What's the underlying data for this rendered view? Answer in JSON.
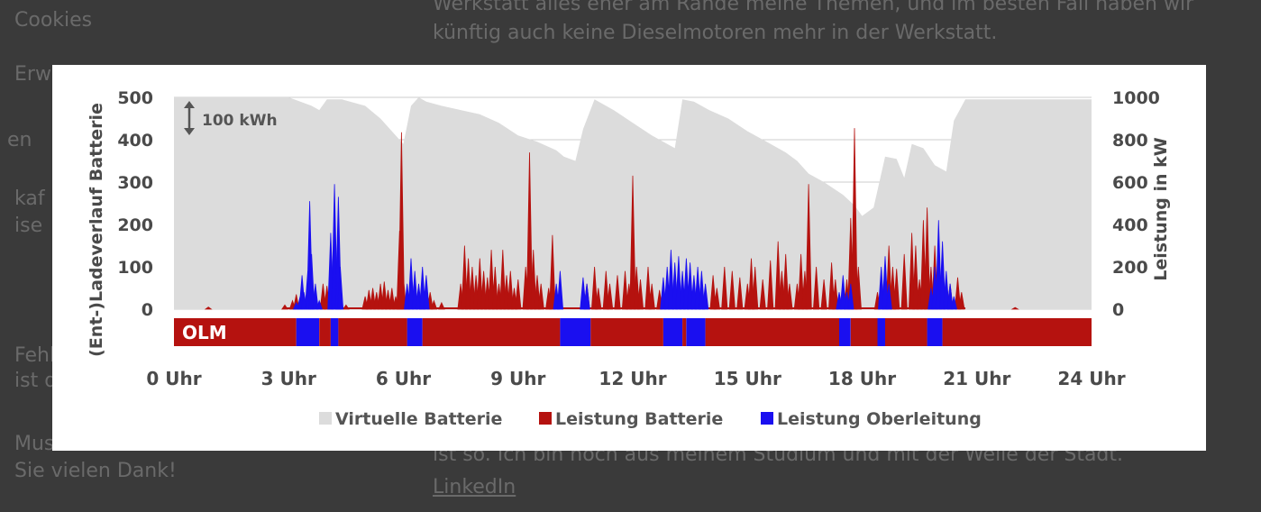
{
  "background": {
    "left_fragments": [
      "Cookies",
      "Erw",
      "en",
      "kaf",
      "ise",
      "Fehl",
      "ist d",
      "Mus",
      "Sie vielen Dank!"
    ],
    "right_fragments": [
      "Werkstatt alles eher am Rande meine Themen, und im besten Fall haben wir",
      "künftig auch keine Dieselmotoren mehr in der Werkstatt.",
      "ist so. Ich bin noch aus meinem Studium und mit der Welle der Stadt.",
      "LinkedIn"
    ]
  },
  "chart_data": {
    "type": "area",
    "left_axis": {
      "label": "(Ent-)Ladeverlauf Batterie",
      "ylim": [
        0,
        500
      ],
      "ticks": [
        "0",
        "100",
        "200",
        "300",
        "400",
        "500"
      ]
    },
    "right_axis": {
      "label": "Leistung in kW",
      "ylim": [
        0,
        1000
      ],
      "ticks": [
        "0",
        "200",
        "400",
        "600",
        "800",
        "1000"
      ]
    },
    "x_axis": {
      "xlim": [
        0,
        24
      ],
      "ticks": [
        "0 Uhr",
        "3 Uhr",
        "6 Uhr",
        "9 Uhr",
        "12 Uhr",
        "15 Uhr",
        "18 Uhr",
        "21 Uhr",
        "24 Uhr"
      ],
      "tick_hours": [
        0,
        3,
        6,
        9,
        12,
        15,
        18,
        21,
        24
      ]
    },
    "scale_annotation": "100 kWh",
    "band_label": "OLM",
    "legend": [
      {
        "name": "Virtuelle Batterie",
        "color": "#dcdcdc"
      },
      {
        "name": "Leistung Batterie",
        "color": "#b5120f"
      },
      {
        "name": "Leistung Oberleitung",
        "color": "#1a0ff0"
      }
    ],
    "colors": {
      "battery_area": "#dcdcdc",
      "battery_power": "#b5120f",
      "overhead_power": "#1a0ff0",
      "grid": "#cccccc"
    },
    "grid": true,
    "series_virtual_battery": {
      "name": "Virtuelle Batterie",
      "hours": [
        0,
        3.0,
        3.6,
        3.8,
        4.0,
        4.4,
        5.0,
        5.4,
        5.7,
        6.0,
        6.2,
        6.4,
        6.6,
        7.0,
        7.5,
        8.0,
        8.5,
        9.0,
        9.5,
        10.0,
        10.2,
        10.5,
        10.7,
        11.0,
        11.5,
        12.0,
        12.5,
        13.0,
        13.1,
        13.3,
        13.6,
        14.0,
        14.5,
        15.0,
        15.5,
        16.0,
        16.3,
        16.6,
        17.0,
        17.5,
        17.8,
        18.0,
        18.3,
        18.6,
        18.9,
        19.1,
        19.3,
        19.6,
        19.9,
        20.2,
        20.4,
        20.7,
        21.0,
        22.0,
        24.0
      ],
      "values": [
        500,
        500,
        480,
        470,
        495,
        495,
        480,
        450,
        420,
        390,
        480,
        500,
        490,
        480,
        470,
        460,
        440,
        410,
        395,
        375,
        360,
        350,
        425,
        495,
        470,
        440,
        410,
        385,
        380,
        495,
        490,
        470,
        450,
        420,
        395,
        370,
        350,
        320,
        300,
        270,
        245,
        220,
        240,
        360,
        355,
        310,
        390,
        380,
        340,
        325,
        445,
        495,
        495,
        495,
        495
      ]
    },
    "band_segments": [
      {
        "type": "OLM",
        "start": 0.0,
        "end": 3.2
      },
      {
        "type": "Oberleitung",
        "start": 3.2,
        "end": 3.8
      },
      {
        "type": "OLM",
        "start": 3.8,
        "end": 4.1
      },
      {
        "type": "Oberleitung",
        "start": 4.1,
        "end": 4.3
      },
      {
        "type": "OLM",
        "start": 4.3,
        "end": 6.1
      },
      {
        "type": "Oberleitung",
        "start": 6.1,
        "end": 6.5
      },
      {
        "type": "OLM",
        "start": 6.5,
        "end": 10.1
      },
      {
        "type": "Oberleitung",
        "start": 10.1,
        "end": 10.9
      },
      {
        "type": "OLM",
        "start": 10.9,
        "end": 12.8
      },
      {
        "type": "Oberleitung",
        "start": 12.8,
        "end": 13.3
      },
      {
        "type": "OLM",
        "start": 13.3,
        "end": 13.4
      },
      {
        "type": "Oberleitung",
        "start": 13.4,
        "end": 13.9
      },
      {
        "type": "OLM",
        "start": 13.9,
        "end": 17.4
      },
      {
        "type": "Oberleitung",
        "start": 17.4,
        "end": 17.7
      },
      {
        "type": "OLM",
        "start": 17.7,
        "end": 18.4
      },
      {
        "type": "Oberleitung",
        "start": 18.4,
        "end": 18.6
      },
      {
        "type": "OLM",
        "start": 18.6,
        "end": 19.7
      },
      {
        "type": "Oberleitung",
        "start": 19.7,
        "end": 20.1
      },
      {
        "type": "OLM",
        "start": 20.1,
        "end": 24.0
      }
    ],
    "series_battery_power": {
      "name": "Leistung Batterie",
      "unit": "kW",
      "peaks": [
        [
          0.9,
          10
        ],
        [
          2.9,
          20
        ],
        [
          3.1,
          40
        ],
        [
          3.2,
          70
        ],
        [
          3.9,
          120
        ],
        [
          4.0,
          110
        ],
        [
          4.1,
          130
        ],
        [
          4.3,
          30
        ],
        [
          4.5,
          20
        ],
        [
          5.0,
          60
        ],
        [
          5.1,
          90
        ],
        [
          5.2,
          100
        ],
        [
          5.3,
          80
        ],
        [
          5.4,
          120
        ],
        [
          5.5,
          130
        ],
        [
          5.6,
          90
        ],
        [
          5.7,
          100
        ],
        [
          5.8,
          60
        ],
        [
          5.9,
          180
        ],
        [
          6.0,
          150
        ],
        [
          6.1,
          60
        ],
        [
          5.9,
          370
        ],
        [
          5.95,
          835
        ],
        [
          6.5,
          60
        ],
        [
          6.7,
          80
        ],
        [
          6.8,
          40
        ],
        [
          7.0,
          30
        ],
        [
          7.5,
          120
        ],
        [
          7.6,
          300
        ],
        [
          7.7,
          240
        ],
        [
          7.8,
          200
        ],
        [
          7.9,
          160
        ],
        [
          8.0,
          240
        ],
        [
          8.1,
          180
        ],
        [
          8.2,
          150
        ],
        [
          8.3,
          280
        ],
        [
          8.4,
          200
        ],
        [
          8.5,
          120
        ],
        [
          8.6,
          280
        ],
        [
          8.7,
          160
        ],
        [
          8.8,
          180
        ],
        [
          8.9,
          100
        ],
        [
          9.0,
          140
        ],
        [
          9.2,
          200
        ],
        [
          9.3,
          740
        ],
        [
          9.4,
          280
        ],
        [
          9.5,
          160
        ],
        [
          9.6,
          120
        ],
        [
          9.8,
          100
        ],
        [
          9.9,
          350
        ],
        [
          10.8,
          120
        ],
        [
          11.0,
          200
        ],
        [
          11.1,
          100
        ],
        [
          11.3,
          180
        ],
        [
          11.4,
          120
        ],
        [
          11.6,
          160
        ],
        [
          11.8,
          180
        ],
        [
          11.9,
          120
        ],
        [
          12.0,
          630
        ],
        [
          12.1,
          200
        ],
        [
          12.2,
          140
        ],
        [
          12.4,
          200
        ],
        [
          12.5,
          120
        ],
        [
          12.7,
          90
        ],
        [
          14.1,
          160
        ],
        [
          14.2,
          100
        ],
        [
          14.4,
          200
        ],
        [
          14.6,
          180
        ],
        [
          14.8,
          150
        ],
        [
          15.0,
          120
        ],
        [
          15.1,
          240
        ],
        [
          15.2,
          200
        ],
        [
          15.4,
          140
        ],
        [
          15.6,
          230
        ],
        [
          15.8,
          320
        ],
        [
          15.9,
          180
        ],
        [
          16.0,
          260
        ],
        [
          16.1,
          120
        ],
        [
          16.3,
          120
        ],
        [
          16.4,
          260
        ],
        [
          16.5,
          180
        ],
        [
          16.6,
          590
        ],
        [
          16.8,
          200
        ],
        [
          17.0,
          140
        ],
        [
          17.2,
          220
        ],
        [
          17.3,
          140
        ],
        [
          17.6,
          140
        ],
        [
          17.7,
          430
        ],
        [
          17.8,
          855
        ],
        [
          17.9,
          200
        ],
        [
          18.4,
          80
        ],
        [
          18.6,
          120
        ],
        [
          18.7,
          300
        ],
        [
          18.8,
          200
        ],
        [
          18.9,
          190
        ],
        [
          19.1,
          260
        ],
        [
          19.3,
          360
        ],
        [
          19.4,
          300
        ],
        [
          19.5,
          140
        ],
        [
          19.6,
          420
        ],
        [
          19.7,
          480
        ],
        [
          19.8,
          200
        ],
        [
          19.9,
          300
        ],
        [
          20.0,
          160
        ],
        [
          20.1,
          220
        ],
        [
          20.3,
          120
        ],
        [
          20.5,
          150
        ],
        [
          20.6,
          80
        ],
        [
          22.0,
          8
        ]
      ]
    },
    "series_overhead_power": {
      "name": "Leistung Oberleitung",
      "unit": "kW",
      "peaks": [
        [
          3.2,
          30
        ],
        [
          3.3,
          60
        ],
        [
          3.35,
          160
        ],
        [
          3.4,
          80
        ],
        [
          3.5,
          180
        ],
        [
          3.55,
          510
        ],
        [
          3.6,
          260
        ],
        [
          3.7,
          120
        ],
        [
          3.8,
          40
        ],
        [
          4.1,
          360
        ],
        [
          4.2,
          590
        ],
        [
          4.3,
          530
        ],
        [
          4.35,
          200
        ],
        [
          6.1,
          120
        ],
        [
          6.2,
          240
        ],
        [
          6.3,
          180
        ],
        [
          6.4,
          120
        ],
        [
          6.5,
          200
        ],
        [
          6.6,
          160
        ],
        [
          10.0,
          120
        ],
        [
          10.1,
          180
        ],
        [
          10.7,
          150
        ],
        [
          10.8,
          120
        ],
        [
          12.8,
          150
        ],
        [
          12.9,
          200
        ],
        [
          13.0,
          280
        ],
        [
          13.1,
          220
        ],
        [
          13.2,
          250
        ],
        [
          13.3,
          180
        ],
        [
          13.4,
          240
        ],
        [
          13.5,
          220
        ],
        [
          13.6,
          160
        ],
        [
          13.7,
          200
        ],
        [
          13.8,
          180
        ],
        [
          13.9,
          120
        ],
        [
          17.4,
          80
        ],
        [
          17.5,
          160
        ],
        [
          17.6,
          80
        ],
        [
          17.7,
          120
        ],
        [
          18.5,
          200
        ],
        [
          18.6,
          250
        ],
        [
          18.7,
          120
        ],
        [
          19.8,
          100
        ],
        [
          19.9,
          200
        ],
        [
          20.0,
          420
        ],
        [
          20.1,
          320
        ],
        [
          20.2,
          180
        ],
        [
          20.3,
          120
        ],
        [
          20.4,
          60
        ]
      ]
    }
  }
}
